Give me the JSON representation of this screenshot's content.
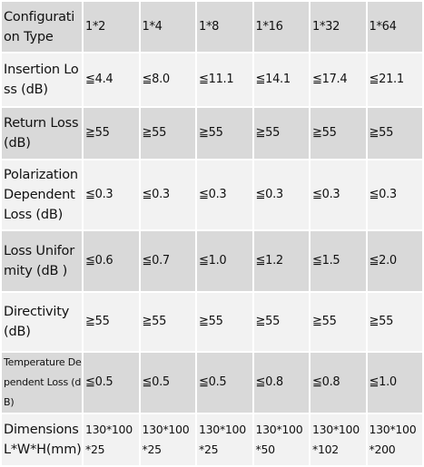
{
  "table": {
    "header": {
      "label": "Configuration Type",
      "cells": [
        "1*2",
        "1*4",
        "1*8",
        "1*16",
        "1*32",
        "1*64"
      ]
    },
    "rows": [
      {
        "label": "Insertion Loss (dB)",
        "cells": [
          "≦4.4",
          "≦8.0",
          "≦11.1",
          "≦14.1",
          "≦17.4",
          "≦21.1"
        ]
      },
      {
        "label": "Return Loss (dB)",
        "cells": [
          "≧55",
          "≧55",
          "≧55",
          "≧55",
          "≧55",
          "≧55"
        ]
      },
      {
        "label": "Polarization Dependent Loss (dB)",
        "cells": [
          "≦0.3",
          "≦0.3",
          "≦0.3",
          "≦0.3",
          "≦0.3",
          "≦0.3"
        ]
      },
      {
        "label": "Loss Uniformity (dB )",
        "cells": [
          "≦0.6",
          "≦0.7",
          "≦1.0",
          "≦1.2",
          "≦1.5",
          "≦2.0"
        ]
      },
      {
        "label": "Directivity (dB)",
        "cells": [
          "≧55",
          "≧55",
          "≧55",
          "≧55",
          "≧55",
          "≧55"
        ]
      },
      {
        "label": "Temperature Dependent Loss (dB)",
        "cells": [
          "≦0.5",
          "≦0.5",
          "≦0.5",
          "≦0.8",
          "≦0.8",
          "≦1.0"
        ]
      },
      {
        "label": "Dimensions L*W*H(mm)",
        "cells": [
          "130*100 *25",
          "130*100 *25",
          "130*100 *25",
          "130*100 *50",
          "130*100 *102",
          "130*100 *200"
        ]
      }
    ]
  }
}
